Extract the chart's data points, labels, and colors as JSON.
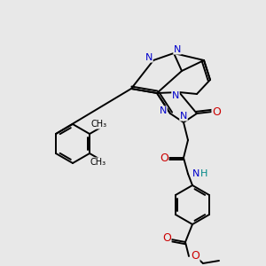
{
  "bg_color": "#e8e8e8",
  "atom_colors": {
    "N": "#0000cc",
    "O": "#cc0000",
    "C": "#000000",
    "H": "#008888"
  },
  "bond_color": "#000000",
  "bond_width": 1.4,
  "font_size_atom": 8,
  "fig_size": [
    3.0,
    3.0
  ],
  "dpi": 100,
  "white_bg": "#e8e8e8"
}
